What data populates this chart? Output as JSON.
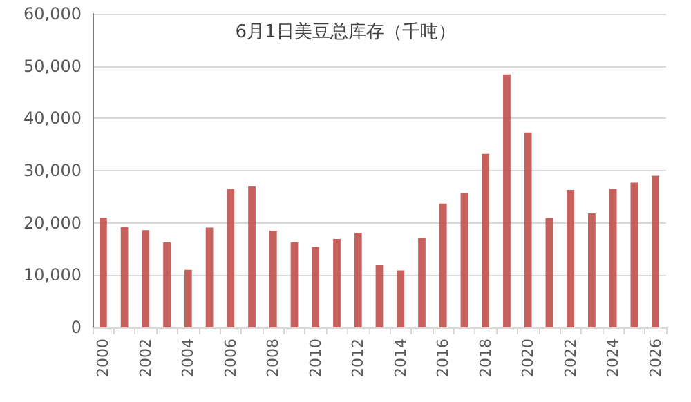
{
  "chart_data": {
    "type": "bar",
    "title": "6月1日美豆总库存（千吨）",
    "categories": [
      "2000",
      null,
      "2002",
      null,
      "2004",
      null,
      "2006",
      null,
      "2008",
      null,
      "2010",
      null,
      "2012",
      null,
      "2014",
      null,
      "2016",
      null,
      "2018",
      null,
      "2020",
      null,
      "2022",
      null,
      "2024",
      null,
      "2026"
    ],
    "values": [
      21000,
      19200,
      18600,
      16300,
      11000,
      19100,
      26500,
      27000,
      18500,
      16300,
      15400,
      16900,
      18100,
      11900,
      10900,
      17100,
      23700,
      25700,
      33200,
      48400,
      37300,
      20900,
      26300,
      21800,
      26500,
      27700,
      29000
    ],
    "color": "#c0504d",
    "ylim": [
      0,
      60000
    ],
    "yticks": [
      0,
      {
        "value": 10000,
        "label": "10,000"
      },
      {
        "value": 20000,
        "label": "20,000"
      },
      {
        "value": 30000,
        "label": "30,000"
      },
      {
        "value": 40000,
        "label": "40,000"
      },
      {
        "value": 50000,
        "label": "50,000"
      },
      {
        "value": 60000,
        "label": "60,000"
      }
    ],
    "grid": "y"
  }
}
